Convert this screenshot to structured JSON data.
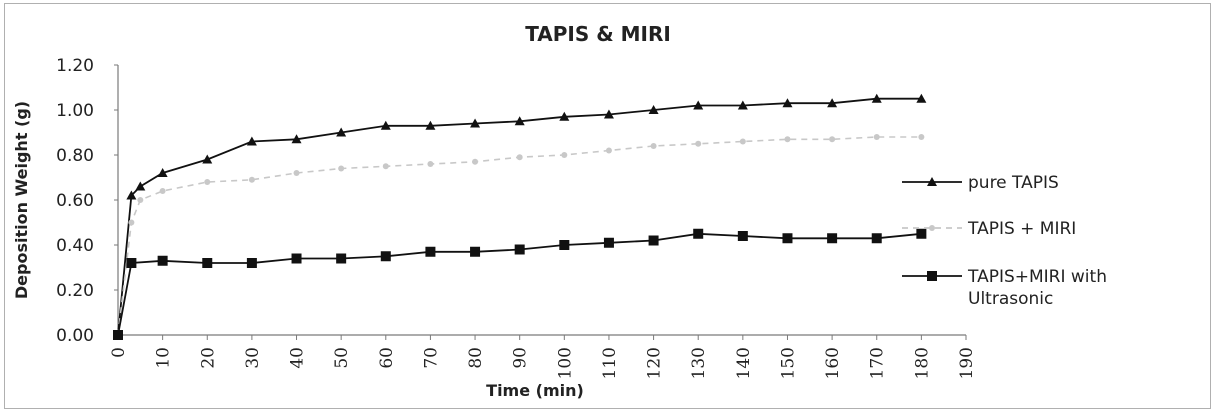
{
  "chart_data": {
    "type": "line",
    "title": "TAPIS & MIRI",
    "xlabel": "Time (min)",
    "ylabel": "Deposition Weight (g)",
    "ylim": [
      0,
      1.2
    ],
    "yticks": [
      "0.00",
      "0.20",
      "0.40",
      "0.60",
      "0.80",
      "1.00",
      "1.20"
    ],
    "xlim": [
      0,
      190
    ],
    "xticks": [
      "0",
      "10",
      "20",
      "30",
      "40",
      "50",
      "60",
      "70",
      "80",
      "90",
      "100",
      "110",
      "120",
      "130",
      "140",
      "150",
      "160",
      "170",
      "180",
      "190"
    ],
    "grid": false,
    "legend_position": "right",
    "series": [
      {
        "name": "pure TAPIS",
        "marker": "triangle",
        "color": "#111111",
        "x": [
          0,
          3,
          5,
          10,
          20,
          30,
          40,
          50,
          60,
          70,
          80,
          90,
          100,
          110,
          120,
          130,
          140,
          150,
          160,
          170,
          180
        ],
        "y": [
          0.0,
          0.62,
          0.66,
          0.72,
          0.78,
          0.86,
          0.87,
          0.9,
          0.93,
          0.93,
          0.94,
          0.95,
          0.97,
          0.98,
          1.0,
          1.02,
          1.02,
          1.03,
          1.03,
          1.05,
          1.05
        ]
      },
      {
        "name": "TAPIS + MIRI",
        "marker": "circle",
        "color": "#c8c8c8",
        "x": [
          0,
          3,
          5,
          10,
          20,
          30,
          40,
          50,
          60,
          70,
          80,
          90,
          100,
          110,
          120,
          130,
          140,
          150,
          160,
          170,
          180
        ],
        "y": [
          0.0,
          0.5,
          0.6,
          0.64,
          0.68,
          0.69,
          0.72,
          0.74,
          0.75,
          0.76,
          0.77,
          0.79,
          0.8,
          0.82,
          0.84,
          0.85,
          0.86,
          0.87,
          0.87,
          0.88,
          0.88
        ]
      },
      {
        "name": "TAPIS+MIRI with Ultrasonic",
        "marker": "square",
        "color": "#111111",
        "x": [
          0,
          3,
          10,
          20,
          30,
          40,
          50,
          60,
          70,
          80,
          90,
          100,
          110,
          120,
          130,
          140,
          150,
          160,
          170,
          180
        ],
        "y": [
          0.0,
          0.32,
          0.33,
          0.32,
          0.32,
          0.34,
          0.34,
          0.35,
          0.37,
          0.37,
          0.38,
          0.4,
          0.41,
          0.42,
          0.45,
          0.44,
          0.43,
          0.43,
          0.43,
          0.45
        ]
      }
    ]
  }
}
